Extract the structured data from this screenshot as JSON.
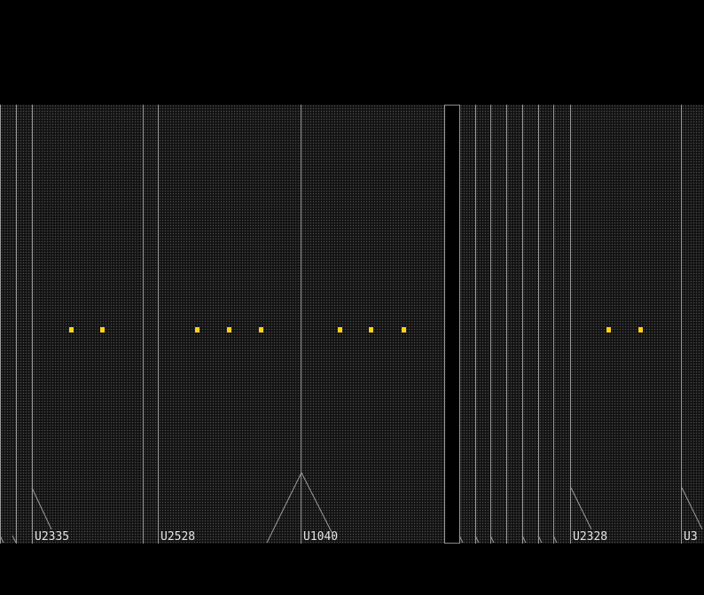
{
  "view": {
    "background": "#000000",
    "cell_border_color": "#9a9a9a",
    "cell_fill_color": "#111111",
    "pin_color": "#ffd21a",
    "label_color": "#e6e6e6"
  },
  "cells": [
    {
      "id": "c1",
      "label": ""
    },
    {
      "id": "c2",
      "label": ""
    },
    {
      "id": "c3",
      "label": "U2335"
    },
    {
      "id": "c4",
      "label": ""
    },
    {
      "id": "c5",
      "label": "U2528"
    },
    {
      "id": "c6",
      "label": "U1040"
    },
    {
      "id": "c7",
      "label": ""
    },
    {
      "id": "c8",
      "label": ""
    },
    {
      "id": "c9",
      "label": ""
    },
    {
      "id": "c10",
      "label": ""
    },
    {
      "id": "c11",
      "label": ""
    },
    {
      "id": "c12",
      "label": ""
    },
    {
      "id": "c13",
      "label": ""
    },
    {
      "id": "c14",
      "label": "U2328"
    },
    {
      "id": "c15",
      "label": "U3"
    }
  ]
}
